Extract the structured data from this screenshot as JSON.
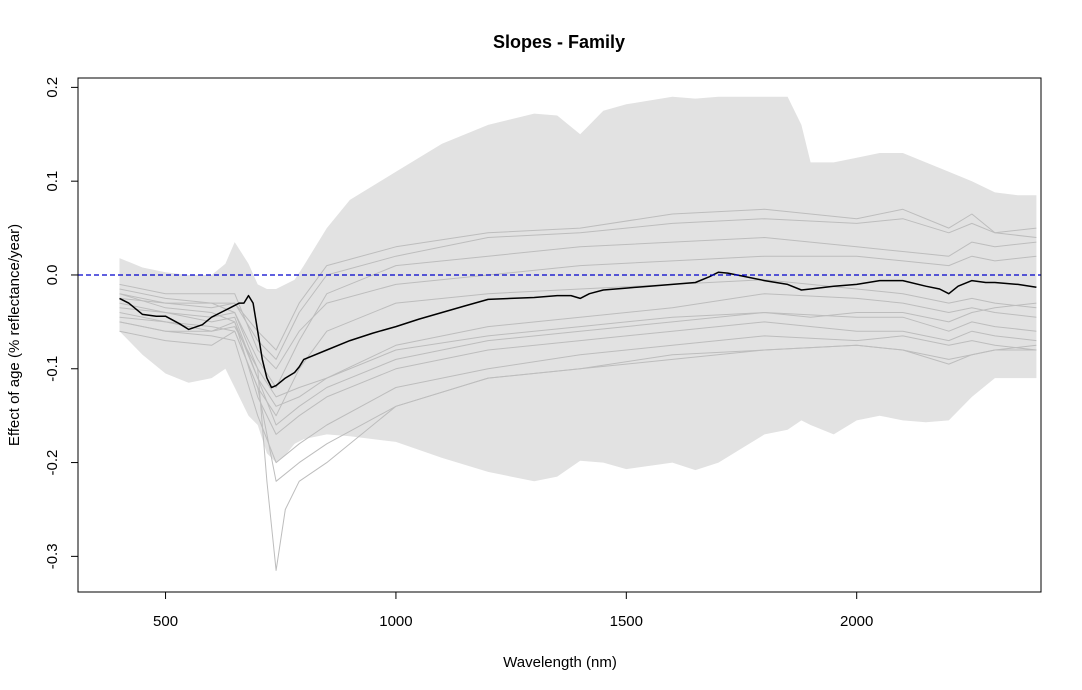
{
  "chart_data": {
    "type": "line",
    "title": "Slopes - Family",
    "xlabel": "Wavelength (nm)",
    "ylabel": "Effect of age (% reflectance/year)",
    "xlim": [
      310,
      2400
    ],
    "ylim": [
      -0.338,
      0.21
    ],
    "x_ticks": [
      500,
      1000,
      1500,
      2000
    ],
    "y_ticks": [
      -0.3,
      -0.2,
      -0.1,
      0.0,
      0.1,
      0.2
    ],
    "x_tick_labels": [
      "500",
      "1000",
      "1500",
      "2000"
    ],
    "y_tick_labels": [
      "-0.3",
      "-0.2",
      "-0.1",
      "0.0",
      "0.1",
      "0.2"
    ],
    "grid": false,
    "legend": "none",
    "reference_line": {
      "y": 0.0,
      "style": "dashed",
      "color": "#0000cc"
    },
    "band": {
      "color": "#e2e2e2",
      "x": [
        400,
        450,
        500,
        550,
        600,
        630,
        650,
        680,
        700,
        720,
        740,
        760,
        780,
        800,
        850,
        900,
        1000,
        1100,
        1200,
        1300,
        1350,
        1400,
        1450,
        1500,
        1600,
        1650,
        1700,
        1750,
        1800,
        1850,
        1880,
        1900,
        1950,
        2000,
        2050,
        2100,
        2150,
        2200,
        2250,
        2300,
        2350,
        2390
      ],
      "upper": [
        0.018,
        0.008,
        0.003,
        0.0,
        0.0,
        0.012,
        0.035,
        0.012,
        -0.01,
        -0.015,
        -0.015,
        -0.01,
        -0.005,
        0.01,
        0.05,
        0.08,
        0.11,
        0.14,
        0.16,
        0.172,
        0.17,
        0.15,
        0.175,
        0.182,
        0.19,
        0.188,
        0.19,
        0.19,
        0.19,
        0.19,
        0.16,
        0.12,
        0.12,
        0.125,
        0.13,
        0.13,
        0.12,
        0.11,
        0.1,
        0.088,
        0.085,
        0.085
      ],
      "lower": [
        -0.06,
        -0.085,
        -0.105,
        -0.115,
        -0.11,
        -0.1,
        -0.12,
        -0.15,
        -0.16,
        -0.19,
        -0.2,
        -0.192,
        -0.18,
        -0.175,
        -0.17,
        -0.172,
        -0.178,
        -0.195,
        -0.21,
        -0.22,
        -0.215,
        -0.198,
        -0.2,
        -0.207,
        -0.2,
        -0.208,
        -0.2,
        -0.185,
        -0.17,
        -0.165,
        -0.155,
        -0.16,
        -0.17,
        -0.155,
        -0.15,
        -0.155,
        -0.157,
        -0.155,
        -0.13,
        -0.11,
        -0.11,
        -0.11
      ]
    },
    "series": [
      {
        "color": "#000000",
        "width": 1.5,
        "x": [
          400,
          420,
          450,
          480,
          500,
          530,
          550,
          580,
          600,
          620,
          640,
          660,
          670,
          680,
          690,
          700,
          710,
          720,
          730,
          740,
          760,
          780,
          790,
          800,
          850,
          900,
          950,
          1000,
          1050,
          1100,
          1150,
          1200,
          1250,
          1300,
          1350,
          1380,
          1400,
          1420,
          1450,
          1500,
          1550,
          1600,
          1650,
          1680,
          1700,
          1720,
          1750,
          1800,
          1850,
          1880,
          1900,
          1950,
          2000,
          2050,
          2100,
          2150,
          2180,
          2200,
          2220,
          2250,
          2280,
          2300,
          2350,
          2390
        ],
        "y": [
          -0.025,
          -0.03,
          -0.042,
          -0.044,
          -0.044,
          -0.052,
          -0.058,
          -0.053,
          -0.045,
          -0.04,
          -0.035,
          -0.03,
          -0.03,
          -0.022,
          -0.03,
          -0.06,
          -0.09,
          -0.11,
          -0.12,
          -0.118,
          -0.11,
          -0.104,
          -0.098,
          -0.09,
          -0.08,
          -0.07,
          -0.062,
          -0.055,
          -0.047,
          -0.04,
          -0.033,
          -0.026,
          -0.025,
          -0.024,
          -0.022,
          -0.022,
          -0.025,
          -0.02,
          -0.016,
          -0.014,
          -0.012,
          -0.01,
          -0.008,
          -0.002,
          0.003,
          0.002,
          -0.001,
          -0.006,
          -0.01,
          -0.016,
          -0.015,
          -0.012,
          -0.01,
          -0.006,
          -0.006,
          -0.012,
          -0.015,
          -0.02,
          -0.012,
          -0.006,
          -0.008,
          -0.008,
          -0.01,
          -0.013
        ]
      },
      {
        "color": "#bdbdbd",
        "width": 1,
        "x": [
          400,
          500,
          600,
          650,
          700,
          740,
          790,
          850,
          1000,
          1200,
          1400,
          1600,
          1800,
          2000,
          2100,
          2200,
          2250,
          2300,
          2390
        ],
        "y": [
          -0.06,
          -0.07,
          -0.075,
          -0.06,
          -0.12,
          -0.22,
          -0.2,
          -0.18,
          -0.14,
          -0.11,
          -0.1,
          -0.085,
          -0.08,
          -0.075,
          -0.08,
          -0.09,
          -0.085,
          -0.08,
          -0.075
        ]
      },
      {
        "color": "#bdbdbd",
        "width": 1,
        "x": [
          400,
          500,
          600,
          650,
          700,
          740,
          790,
          850,
          1000,
          1200,
          1400,
          1600,
          1800,
          1900,
          2000,
          2100,
          2200,
          2250,
          2300,
          2390
        ],
        "y": [
          -0.04,
          -0.05,
          -0.06,
          -0.05,
          -0.11,
          -0.16,
          -0.14,
          -0.12,
          -0.09,
          -0.07,
          -0.06,
          -0.05,
          -0.04,
          -0.045,
          -0.04,
          -0.04,
          -0.05,
          -0.04,
          -0.035,
          -0.03
        ]
      },
      {
        "color": "#bdbdbd",
        "width": 1,
        "x": [
          400,
          500,
          600,
          650,
          700,
          740,
          790,
          850,
          1000,
          1200,
          1400,
          1600,
          1800,
          2000,
          2100,
          2200,
          2250,
          2300,
          2390
        ],
        "y": [
          -0.03,
          -0.04,
          -0.045,
          -0.04,
          -0.1,
          -0.13,
          -0.12,
          -0.11,
          -0.08,
          -0.065,
          -0.055,
          -0.045,
          -0.04,
          -0.045,
          -0.045,
          -0.06,
          -0.05,
          -0.055,
          -0.06
        ]
      },
      {
        "color": "#bdbdbd",
        "width": 1,
        "x": [
          400,
          500,
          600,
          650,
          700,
          740,
          790,
          850,
          1000,
          1200,
          1400,
          1600,
          1800,
          2000,
          2100,
          2200,
          2250,
          2300,
          2390
        ],
        "y": [
          -0.02,
          -0.035,
          -0.04,
          -0.05,
          -0.13,
          -0.17,
          -0.15,
          -0.13,
          -0.1,
          -0.08,
          -0.07,
          -0.06,
          -0.05,
          -0.06,
          -0.06,
          -0.07,
          -0.06,
          -0.065,
          -0.07
        ]
      },
      {
        "color": "#bdbdbd",
        "width": 1,
        "x": [
          400,
          500,
          600,
          650,
          700,
          740,
          790,
          850,
          1000,
          1200,
          1400,
          1600,
          1800,
          2000,
          2100,
          2200,
          2250,
          2300,
          2390
        ],
        "y": [
          -0.05,
          -0.06,
          -0.065,
          -0.07,
          -0.15,
          -0.2,
          -0.18,
          -0.16,
          -0.12,
          -0.1,
          -0.085,
          -0.075,
          -0.065,
          -0.07,
          -0.065,
          -0.075,
          -0.07,
          -0.075,
          -0.08
        ]
      },
      {
        "color": "#bdbdbd",
        "width": 1,
        "x": [
          400,
          500,
          600,
          650,
          700,
          740,
          790,
          850,
          1000,
          1200,
          1400,
          1600,
          1800,
          2000,
          2100,
          2200,
          2250,
          2300,
          2390
        ],
        "y": [
          -0.01,
          -0.02,
          -0.02,
          -0.02,
          -0.08,
          -0.1,
          -0.06,
          -0.03,
          -0.01,
          0.0,
          0.01,
          0.015,
          0.02,
          0.02,
          0.015,
          0.01,
          0.02,
          0.015,
          0.02
        ]
      },
      {
        "color": "#bdbdbd",
        "width": 1,
        "x": [
          400,
          500,
          600,
          650,
          700,
          740,
          790,
          850,
          1000,
          1200,
          1400,
          1600,
          1800,
          2000,
          2100,
          2200,
          2250,
          2300,
          2390
        ],
        "y": [
          -0.02,
          -0.03,
          -0.03,
          -0.04,
          -0.09,
          -0.12,
          -0.07,
          -0.02,
          0.01,
          0.02,
          0.03,
          0.035,
          0.04,
          0.03,
          0.025,
          0.02,
          0.035,
          0.03,
          0.035
        ]
      },
      {
        "color": "#bdbdbd",
        "width": 1,
        "x": [
          400,
          500,
          600,
          650,
          700,
          740,
          790,
          850,
          1000,
          1200,
          1400,
          1600,
          1800,
          2000,
          2100,
          2200,
          2250,
          2300,
          2390
        ],
        "y": [
          -0.015,
          -0.025,
          -0.03,
          -0.03,
          -0.07,
          -0.09,
          -0.04,
          0.0,
          0.02,
          0.04,
          0.045,
          0.055,
          0.06,
          0.055,
          0.06,
          0.045,
          0.055,
          0.045,
          0.05
        ]
      },
      {
        "color": "#bdbdbd",
        "width": 1,
        "x": [
          400,
          500,
          600,
          650,
          700,
          740,
          790,
          850,
          1000,
          1200,
          1400,
          1600,
          1800,
          2000,
          2100,
          2200,
          2250,
          2300,
          2390
        ],
        "y": [
          -0.025,
          -0.03,
          -0.035,
          -0.03,
          -0.06,
          -0.08,
          -0.03,
          0.01,
          0.03,
          0.045,
          0.05,
          0.065,
          0.07,
          0.06,
          0.07,
          0.05,
          0.065,
          0.045,
          0.04
        ]
      },
      {
        "color": "#bdbdbd",
        "width": 1,
        "x": [
          400,
          500,
          600,
          650,
          700,
          740,
          790,
          850,
          1000,
          1200,
          1400,
          1600,
          1800,
          2000,
          2100,
          2200,
          2250,
          2300,
          2390
        ],
        "y": [
          -0.035,
          -0.04,
          -0.05,
          -0.045,
          -0.11,
          -0.14,
          -0.13,
          -0.11,
          -0.075,
          -0.055,
          -0.045,
          -0.035,
          -0.02,
          -0.025,
          -0.03,
          -0.04,
          -0.035,
          -0.04,
          -0.045
        ]
      },
      {
        "color": "#bdbdbd",
        "width": 1,
        "x": [
          400,
          500,
          600,
          650,
          700,
          740,
          790,
          850,
          1000,
          1200,
          1400,
          1600,
          1800,
          2000,
          2100,
          2200,
          2250,
          2300,
          2390
        ],
        "y": [
          -0.045,
          -0.05,
          -0.055,
          -0.06,
          -0.12,
          -0.15,
          -0.1,
          -0.06,
          -0.03,
          -0.02,
          -0.015,
          -0.01,
          -0.005,
          -0.015,
          -0.02,
          -0.03,
          -0.025,
          -0.03,
          -0.035
        ]
      },
      {
        "color": "#bdbdbd",
        "width": 1,
        "x": [
          400,
          500,
          600,
          650,
          700,
          720,
          740,
          760,
          790,
          850,
          1000,
          1200,
          1400,
          1600,
          1800,
          2000,
          2100,
          2200,
          2250,
          2300,
          2390
        ],
        "y": [
          -0.05,
          -0.06,
          -0.06,
          -0.055,
          -0.1,
          -0.22,
          -0.315,
          -0.25,
          -0.22,
          -0.2,
          -0.14,
          -0.11,
          -0.1,
          -0.09,
          -0.08,
          -0.075,
          -0.08,
          -0.095,
          -0.085,
          -0.08,
          -0.08
        ]
      }
    ]
  }
}
